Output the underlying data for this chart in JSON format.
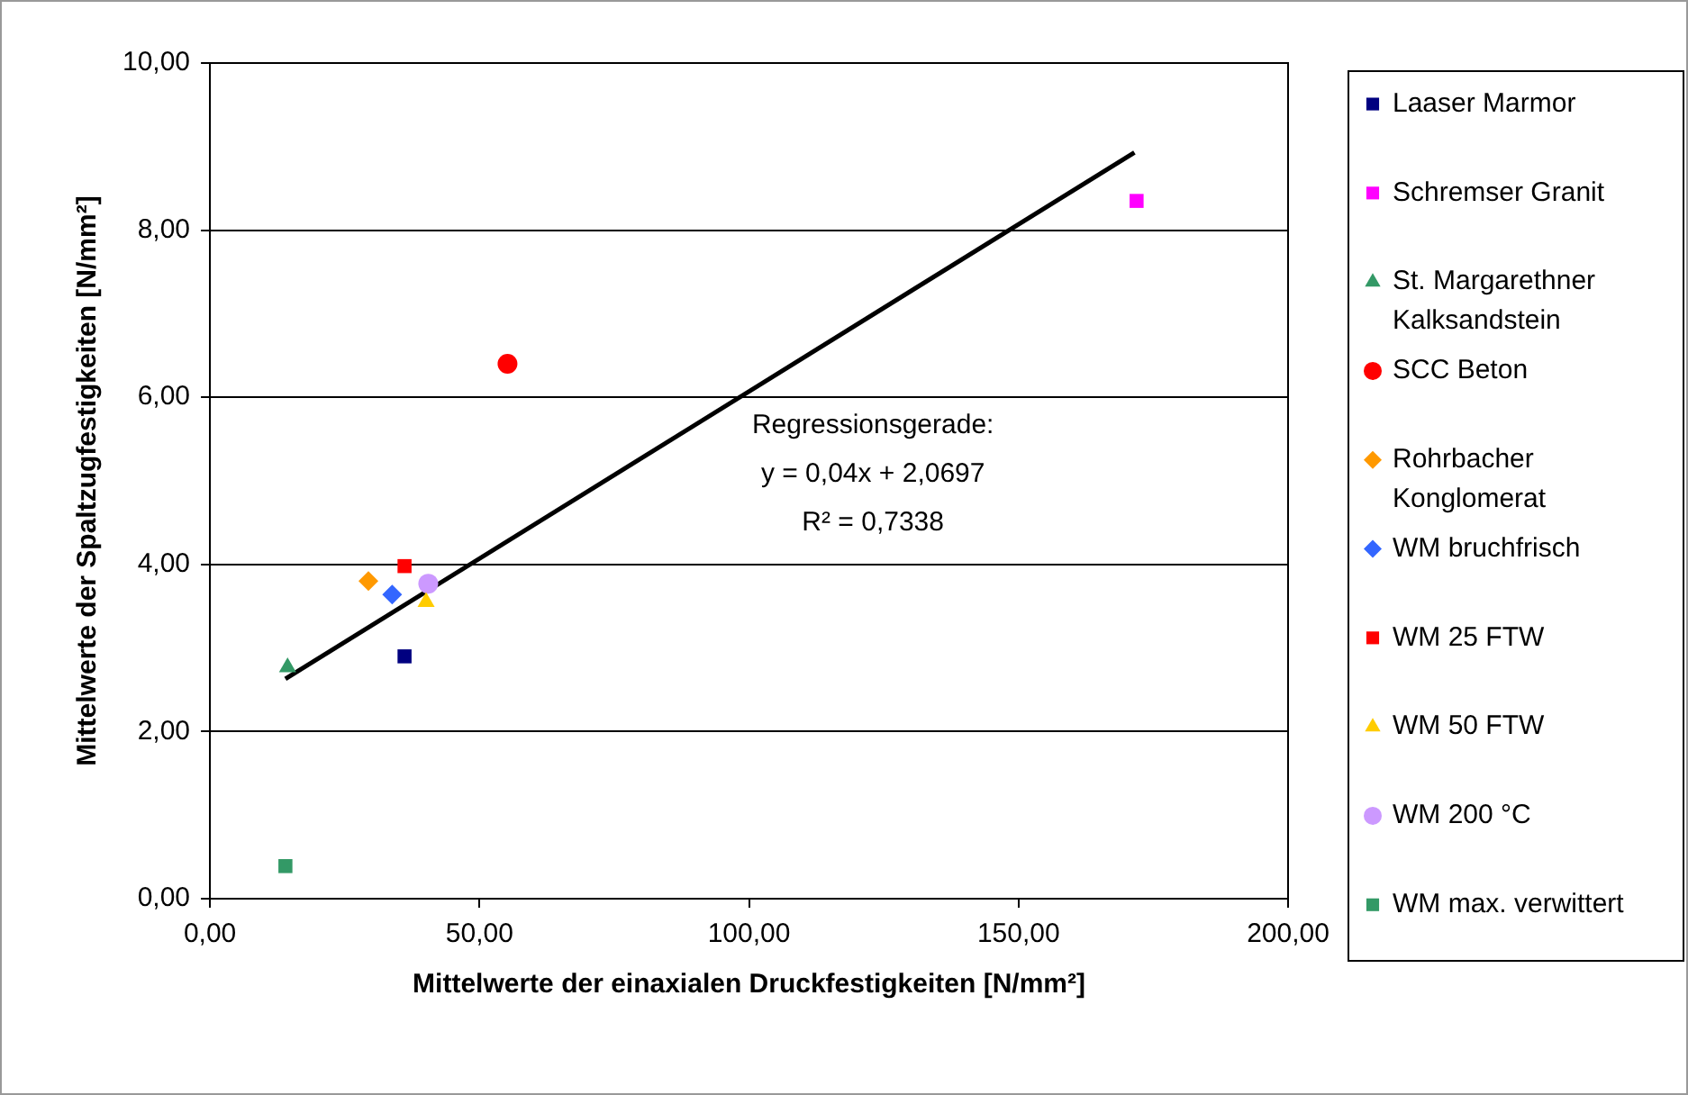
{
  "chart_data": {
    "type": "scatter",
    "xlabel": "Mittelwerte der einaxialen Druckfestigkeiten [N/mm²]",
    "ylabel": "Mittelwerte der Spaltzugfestigkeiten [N/mm²]",
    "xlim": [
      0,
      200
    ],
    "xticks": [
      {
        "value": 0,
        "label": "0,00"
      },
      {
        "value": 50,
        "label": "50,00"
      },
      {
        "value": 100,
        "label": "100,00"
      },
      {
        "value": 150,
        "label": "150,00"
      },
      {
        "value": 200,
        "label": "200,00"
      }
    ],
    "ylim": [
      0,
      10
    ],
    "yticks": [
      {
        "value": 0,
        "label": "0,00"
      },
      {
        "value": 2,
        "label": "2,00"
      },
      {
        "value": 4,
        "label": "4,00"
      },
      {
        "value": 6,
        "label": "6,00"
      },
      {
        "value": 8,
        "label": "8,00"
      },
      {
        "value": 10,
        "label": "10,00"
      }
    ],
    "grid": "y",
    "legend": "right",
    "series": [
      {
        "name": "Laaser Marmor",
        "color": "#000080",
        "marker": "square",
        "x": [
          36.1
        ],
        "values": [
          2.9
        ]
      },
      {
        "name": "Schremser Granit",
        "color": "#ff00ff",
        "marker": "square",
        "x": [
          171.9
        ],
        "values": [
          8.35
        ]
      },
      {
        "name": "St. Margarethner Kalksandstein",
        "color": "#339966",
        "marker": "triangle",
        "x": [
          14.4
        ],
        "values": [
          2.77
        ]
      },
      {
        "name": "SCC Beton",
        "color": "#ff0000",
        "marker": "circle",
        "x": [
          55.2
        ],
        "values": [
          6.4
        ]
      },
      {
        "name": "Rohrbacher Konglomerat",
        "color": "#ff9900",
        "marker": "diamond",
        "x": [
          29.4
        ],
        "values": [
          3.8
        ]
      },
      {
        "name": "WM bruchfrisch",
        "color": "#3366ff",
        "marker": "diamond",
        "x": [
          33.8
        ],
        "values": [
          3.64
        ]
      },
      {
        "name": "WM 25 FTW",
        "color": "#ff0000",
        "marker": "square",
        "x": [
          36.1
        ],
        "values": [
          3.98
        ]
      },
      {
        "name": "WM 50 FTW",
        "color": "#ffcc00",
        "marker": "triangle",
        "x": [
          40.1
        ],
        "values": [
          3.55
        ]
      },
      {
        "name": "WM 200 °C",
        "color": "#cc99ff",
        "marker": "circle",
        "x": [
          40.5
        ],
        "values": [
          3.77
        ]
      },
      {
        "name": "WM max. verwittert",
        "color": "#339966",
        "marker": "square",
        "x": [
          14.0
        ],
        "values": [
          0.39
        ]
      },
      {
        "type": "line",
        "color": "#000000",
        "marker": "none",
        "x": [
          14,
          171.5
        ],
        "values": [
          2.63,
          8.93
        ]
      }
    ],
    "annotations": [
      "Regressionsgerade:\ny = 0,04x + 2,0697\nR² = 0,7338"
    ]
  }
}
